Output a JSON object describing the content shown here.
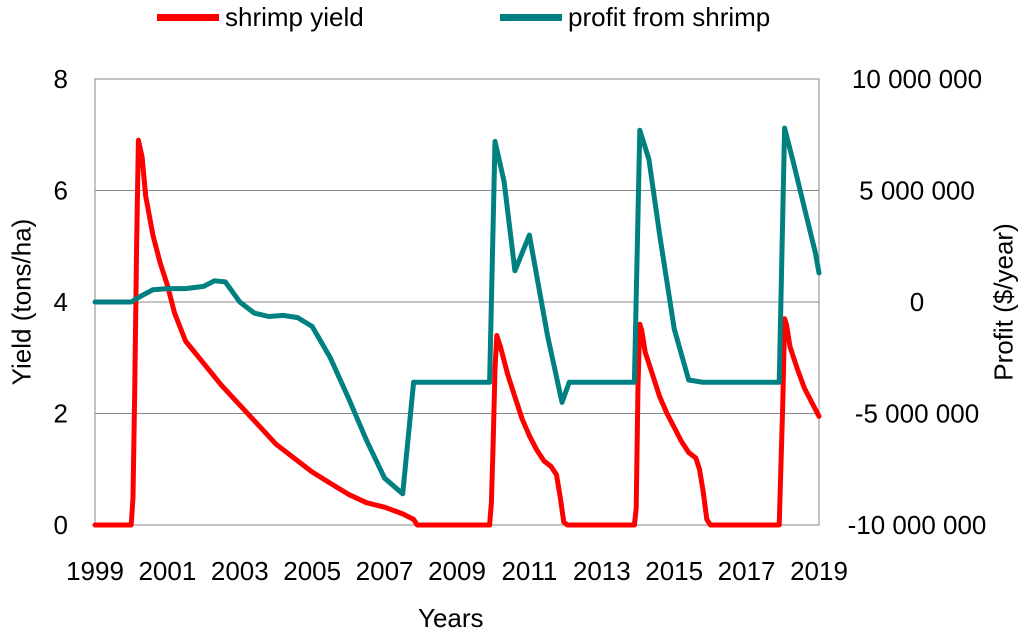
{
  "chart_data": {
    "type": "line",
    "title": "",
    "xlabel": "Years",
    "ylabel_left": "Yield (tons/ha)",
    "ylabel_right": "Profit ($/year)",
    "xlim": [
      1999,
      2019
    ],
    "ylim_left": [
      0,
      8
    ],
    "ylim_right": [
      -10000000,
      10000000
    ],
    "x_ticks": [
      1999,
      2001,
      2003,
      2005,
      2007,
      2009,
      2011,
      2013,
      2015,
      2017,
      2019
    ],
    "y_left_ticks": [
      0,
      2,
      4,
      6,
      8
    ],
    "y_right_ticks": [
      -10000000,
      -5000000,
      0,
      5000000,
      10000000
    ],
    "y_right_tick_labels": [
      "-10 000 000",
      "-5 000 000",
      "0",
      "5 000 000",
      "10 000 000"
    ],
    "grid": true,
    "legend_position": "top",
    "series": [
      {
        "name": "shrimp yield",
        "axis": "left",
        "color": "#ff0000",
        "x": [
          1999,
          2000,
          2000.05,
          2000.1,
          2000.15,
          2000.2,
          2000.3,
          2000.4,
          2000.6,
          2000.8,
          2001,
          2001.2,
          2001.5,
          2002,
          2002.5,
          2003,
          2003.5,
          2004,
          2004.5,
          2005,
          2005.5,
          2006,
          2006.5,
          2007,
          2007.5,
          2007.8,
          2007.9,
          2008,
          2008.05,
          2009,
          2009.9,
          2009.95,
          2010,
          2010.05,
          2010.1,
          2010.2,
          2010.4,
          2010.6,
          2010.8,
          2011,
          2011.2,
          2011.4,
          2011.6,
          2011.75,
          2011.85,
          2011.95,
          2012.05,
          2013,
          2013.9,
          2013.95,
          2014,
          2014.05,
          2014.1,
          2014.2,
          2014.4,
          2014.6,
          2014.8,
          2015,
          2015.2,
          2015.4,
          2015.6,
          2015.7,
          2015.8,
          2015.9,
          2016,
          2017,
          2017.9,
          2018,
          2018.05,
          2018.1,
          2018.2,
          2018.4,
          2018.6,
          2018.8,
          2019
        ],
        "values": [
          0,
          0,
          0.5,
          2.5,
          5.0,
          6.9,
          6.6,
          5.9,
          5.2,
          4.7,
          4.3,
          3.8,
          3.3,
          2.9,
          2.5,
          2.15,
          1.8,
          1.45,
          1.2,
          0.95,
          0.75,
          0.55,
          0.4,
          0.32,
          0.2,
          0.1,
          0,
          0,
          0,
          0,
          0,
          0.4,
          1.5,
          2.8,
          3.4,
          3.2,
          2.7,
          2.3,
          1.9,
          1.6,
          1.35,
          1.15,
          1.05,
          0.9,
          0.5,
          0.05,
          0,
          0,
          0,
          0.3,
          2.5,
          3.6,
          3.5,
          3.1,
          2.7,
          2.3,
          2.0,
          1.75,
          1.5,
          1.3,
          1.2,
          1.0,
          0.6,
          0.1,
          0,
          0,
          0,
          2.2,
          3.7,
          3.6,
          3.2,
          2.8,
          2.45,
          2.2,
          1.95
        ]
      },
      {
        "name": "profit from shrimp",
        "axis": "right",
        "color": "#008080",
        "x": [
          1999,
          1999.5,
          2000,
          2000.2,
          2000.6,
          2001,
          2001.5,
          2002,
          2002.3,
          2002.6,
          2003,
          2003.4,
          2003.8,
          2004.2,
          2004.6,
          2005,
          2005.5,
          2006,
          2006.5,
          2007,
          2007.5,
          2007.8,
          2007.9,
          2008,
          2009,
          2009.9,
          2010.05,
          2010.3,
          2010.6,
          2011,
          2011.5,
          2011.9,
          2012.1,
          2013,
          2013.9,
          2014.05,
          2014.3,
          2014.6,
          2015,
          2015.4,
          2015.8,
          2016,
          2016.5,
          2017,
          2017.9,
          2018.05,
          2018.3,
          2018.6,
          2018.9,
          2019
        ],
        "values": [
          0,
          0,
          0,
          200000,
          550000,
          600000,
          600000,
          700000,
          950000,
          900000,
          0,
          -500000,
          -650000,
          -600000,
          -700000,
          -1100000,
          -2500000,
          -4300000,
          -6200000,
          -7900000,
          -8600000,
          -3600000,
          -3600000,
          -3600000,
          -3600000,
          -3600000,
          7200000,
          5400000,
          1400000,
          3000000,
          -1500000,
          -4500000,
          -3600000,
          -3600000,
          -3600000,
          7700000,
          6400000,
          3000000,
          -1200000,
          -3500000,
          -3600000,
          -3600000,
          -3600000,
          -3600000,
          -3600000,
          7800000,
          6200000,
          4200000,
          2200000,
          1300000
        ]
      }
    ]
  }
}
